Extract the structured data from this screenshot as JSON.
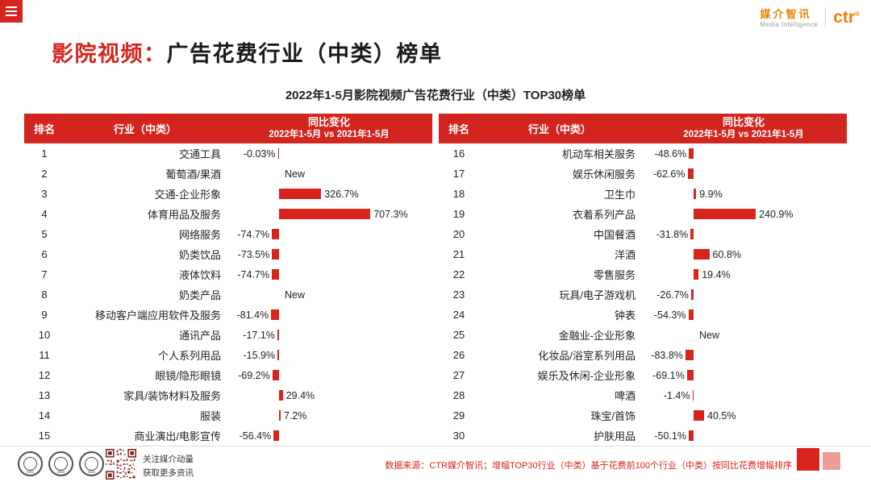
{
  "colors": {
    "accent_red": "#d7241d",
    "header_red": "#d2251f",
    "brand_orange": "#ee8100",
    "pale_red": "#eb9d96",
    "qr_maroon": "#7c241c"
  },
  "brand": {
    "cn": "媒介智讯",
    "en": "Media Intelligence",
    "logo": "ctr",
    "reg": "®"
  },
  "title": {
    "highlight": "影院视频：",
    "rest": "广告花费行业（中类）榜单"
  },
  "subtitle": "2022年1-5月影院视频广告花费行业（中类）TOP30榜单",
  "table": {
    "headers": {
      "rank": "排名",
      "industry": "行业（中类）",
      "change_line1": "同比变化",
      "change_line2": "2022年1-5月 vs 2021年1-5月"
    }
  },
  "chart_data": {
    "type": "bar",
    "orientation": "horizontal",
    "title": "2022年1-5月影院视频广告花费行业（中类）TOP30榜单",
    "value_label": "同比变化 2022年1-5月 vs 2021年1-5月",
    "value_unit": "%",
    "entries": [
      {
        "rank": 1,
        "industry": "交通工具",
        "change": "-0.03%",
        "pct": -0.03
      },
      {
        "rank": 2,
        "industry": "葡萄酒/果酒",
        "change": "New",
        "pct": null
      },
      {
        "rank": 3,
        "industry": "交通-企业形象",
        "change": "326.7%",
        "pct": 326.7
      },
      {
        "rank": 4,
        "industry": "体育用品及服务",
        "change": "707.3%",
        "pct": 707.3
      },
      {
        "rank": 5,
        "industry": "网络服务",
        "change": "-74.7%",
        "pct": -74.7
      },
      {
        "rank": 6,
        "industry": "奶类饮品",
        "change": "-73.5%",
        "pct": -73.5
      },
      {
        "rank": 7,
        "industry": "液体饮料",
        "change": "-74.7%",
        "pct": -74.7
      },
      {
        "rank": 8,
        "industry": "奶类产品",
        "change": "New",
        "pct": null
      },
      {
        "rank": 9,
        "industry": "移动客户端应用软件及服务",
        "change": "-81.4%",
        "pct": -81.4
      },
      {
        "rank": 10,
        "industry": "通讯产品",
        "change": "-17.1%",
        "pct": -17.1
      },
      {
        "rank": 11,
        "industry": "个人系列用品",
        "change": "-15.9%",
        "pct": -15.9
      },
      {
        "rank": 12,
        "industry": "眼镜/隐形眼镜",
        "change": "-69.2%",
        "pct": -69.2
      },
      {
        "rank": 13,
        "industry": "家具/装饰材料及服务",
        "change": "29.4%",
        "pct": 29.4
      },
      {
        "rank": 14,
        "industry": "服装",
        "change": "7.2%",
        "pct": 7.2
      },
      {
        "rank": 15,
        "industry": "商业演出/电影宣传",
        "change": "-56.4%",
        "pct": -56.4
      },
      {
        "rank": 16,
        "industry": "机动车相关服务",
        "change": "-48.6%",
        "pct": -48.6
      },
      {
        "rank": 17,
        "industry": "娱乐休闲服务",
        "change": "-62.6%",
        "pct": -62.6
      },
      {
        "rank": 18,
        "industry": "卫生巾",
        "change": "9.9%",
        "pct": 9.9
      },
      {
        "rank": 19,
        "industry": "衣着系列产品",
        "change": "240.9%",
        "pct": 240.9
      },
      {
        "rank": 20,
        "industry": "中国餐酒",
        "change": "-31.8%",
        "pct": -31.8
      },
      {
        "rank": 21,
        "industry": "洋酒",
        "change": "60.8%",
        "pct": 60.8
      },
      {
        "rank": 22,
        "industry": "零售服务",
        "change": "19.4%",
        "pct": 19.4
      },
      {
        "rank": 23,
        "industry": "玩具/电子游戏机",
        "change": "-26.7%",
        "pct": -26.7
      },
      {
        "rank": 24,
        "industry": "钟表",
        "change": "-54.3%",
        "pct": -54.3
      },
      {
        "rank": 25,
        "industry": "金融业-企业形象",
        "change": "New",
        "pct": null
      },
      {
        "rank": 26,
        "industry": "化妆品/浴室系列用品",
        "change": "-83.8%",
        "pct": -83.8
      },
      {
        "rank": 27,
        "industry": "娱乐及休闲-企业形象",
        "change": "-69.1%",
        "pct": -69.1
      },
      {
        "rank": 28,
        "industry": "啤酒",
        "change": "-1.4%",
        "pct": -1.4
      },
      {
        "rank": 29,
        "industry": "珠宝/首饰",
        "change": "40.5%",
        "pct": 40.5
      },
      {
        "rank": 30,
        "industry": "护肤用品",
        "change": "-50.1%",
        "pct": -50.1
      }
    ]
  },
  "footer": {
    "source": "数据来源：CTR媒介智讯；增幅TOP30行业（中类）基于花费前100个行业（中类）按同比花费增幅排序",
    "qr_caption_line1": "关注媒介动量",
    "qr_caption_line2": "获取更多资讯",
    "cert_label": "SGS"
  }
}
